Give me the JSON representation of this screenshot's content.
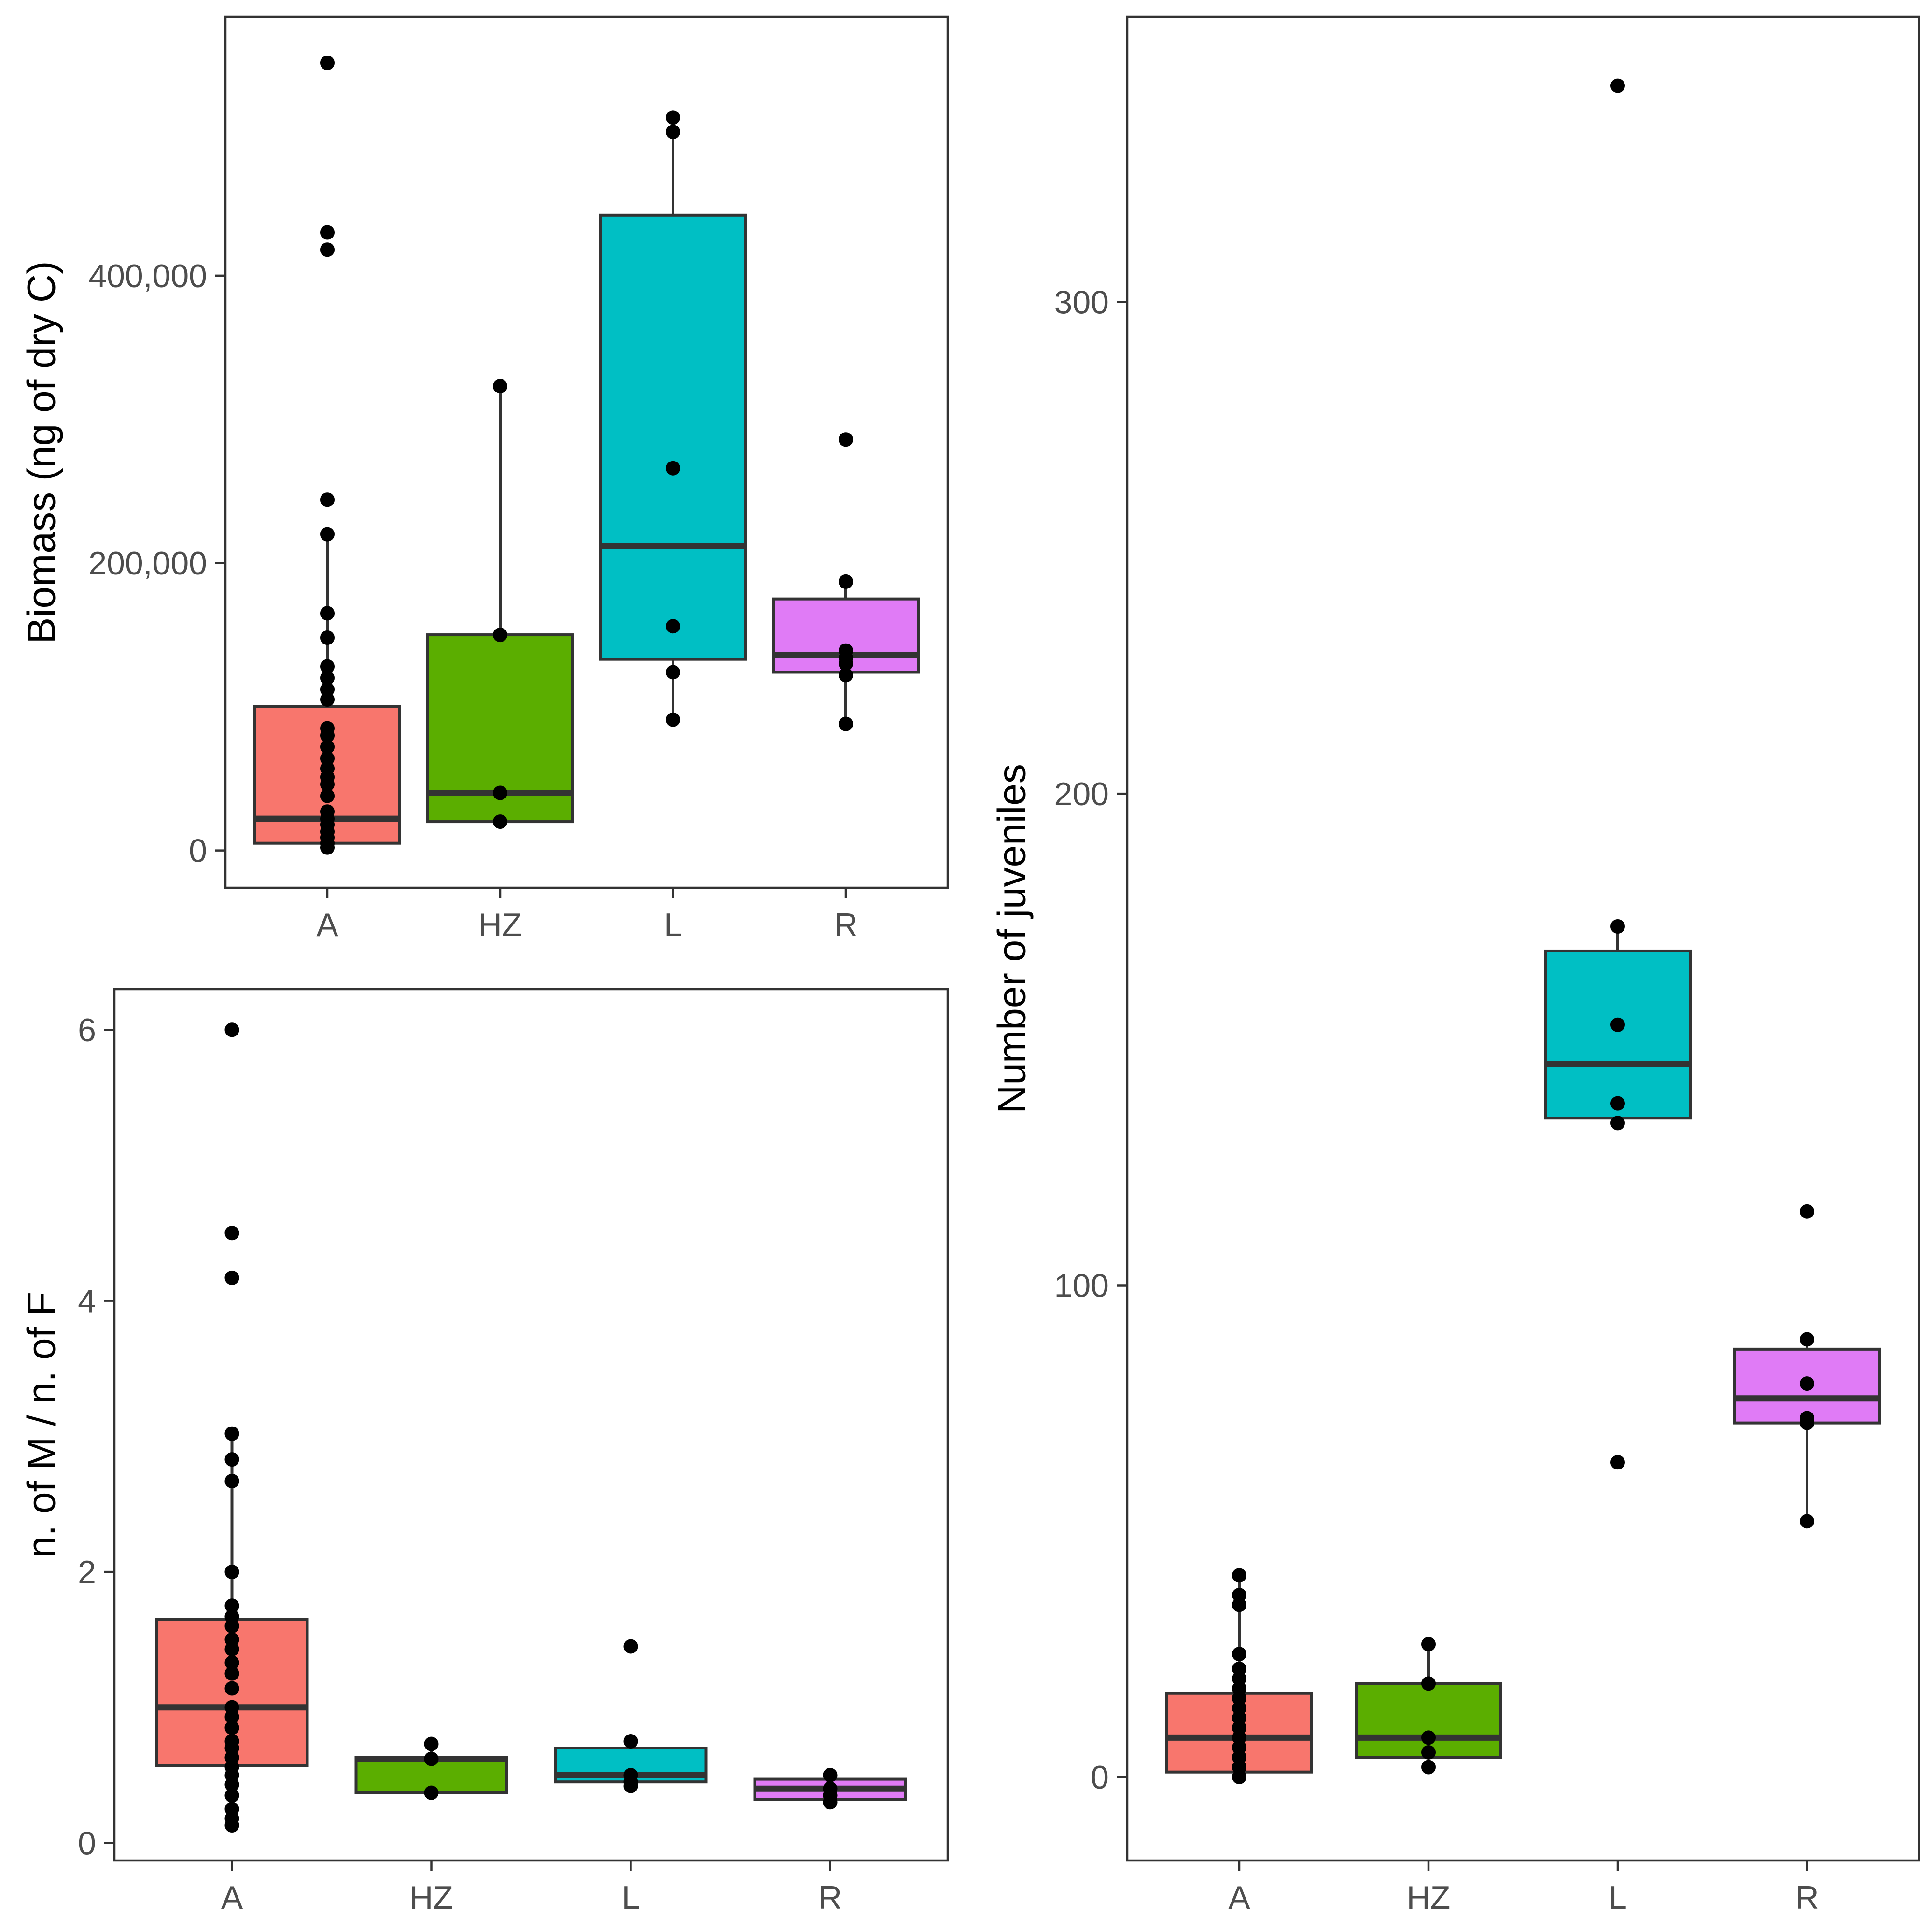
{
  "chart_data": [
    {
      "id": "biomass",
      "type": "box",
      "ylabel": "Biomass (ng of dry C)",
      "categories": [
        "A",
        "HZ",
        "L",
        "R"
      ],
      "colors": [
        "#F8766D",
        "#5BAE00",
        "#00BFC4",
        "#E07BF6"
      ],
      "ylim": [
        -26000,
        580000
      ],
      "yticks": [
        0,
        200000,
        400000
      ],
      "ytick_labels": [
        "0",
        "200,000",
        "400,000"
      ],
      "boxes": [
        {
          "q1": 5000,
          "median": 22000,
          "q3": 100000,
          "lower": 0,
          "upper": 220000
        },
        {
          "q1": 20000,
          "median": 40000,
          "q3": 150000,
          "lower": 20000,
          "upper": 323000
        },
        {
          "q1": 133000,
          "median": 212000,
          "q3": 442000,
          "lower": 91000,
          "upper": 510000
        },
        {
          "q1": 124000,
          "median": 136000,
          "q3": 175000,
          "lower": 88000,
          "upper": 187000
        }
      ],
      "points": [
        [
          548000,
          430000,
          418000,
          244000,
          220000,
          165000,
          148000,
          128000,
          120000,
          112000,
          105000,
          85000,
          80000,
          72000,
          64000,
          57000,
          51000,
          46000,
          38000,
          27000,
          22000,
          18000,
          13000,
          9000,
          5000,
          2000
        ],
        [
          323000,
          150000,
          40000,
          20000
        ],
        [
          510000,
          500000,
          266000,
          156000,
          124000,
          91000
        ],
        [
          286000,
          187000,
          139000,
          134000,
          130000,
          122000,
          88000
        ]
      ]
    },
    {
      "id": "sexratio",
      "type": "box",
      "ylabel": "n. of M / n. of F",
      "categories": [
        "A",
        "HZ",
        "L",
        "R"
      ],
      "colors": [
        "#F8766D",
        "#5BAE00",
        "#00BFC4",
        "#E07BF6"
      ],
      "ylim": [
        -0.13,
        6.3
      ],
      "yticks": [
        0,
        2,
        4,
        6
      ],
      "ytick_labels": [
        "0",
        "2",
        "4",
        "6"
      ],
      "boxes": [
        {
          "q1": 0.57,
          "median": 1.0,
          "q3": 1.65,
          "lower": 0.13,
          "upper": 3.0
        },
        {
          "q1": 0.37,
          "median": 0.62,
          "q3": 0.63,
          "lower": 0.37,
          "upper": 0.73
        },
        {
          "q1": 0.45,
          "median": 0.5,
          "q3": 0.7,
          "lower": 0.42,
          "upper": 0.75
        },
        {
          "q1": 0.32,
          "median": 0.4,
          "q3": 0.47,
          "lower": 0.3,
          "upper": 0.5
        }
      ],
      "points": [
        [
          6.0,
          4.5,
          4.17,
          3.02,
          2.83,
          2.67,
          2.0,
          1.75,
          1.67,
          1.6,
          1.5,
          1.43,
          1.33,
          1.25,
          1.14,
          1.0,
          0.93,
          0.85,
          0.75,
          0.7,
          0.63,
          0.56,
          0.5,
          0.43,
          0.35,
          0.25,
          0.18,
          0.13
        ],
        [
          0.73,
          0.62,
          0.37
        ],
        [
          1.45,
          0.75,
          0.5,
          0.45,
          0.42
        ],
        [
          0.5,
          0.4,
          0.35,
          0.3
        ]
      ]
    },
    {
      "id": "juveniles",
      "type": "box",
      "ylabel": "Number of juveniles",
      "categories": [
        "A",
        "HZ",
        "L",
        "R"
      ],
      "colors": [
        "#F8766D",
        "#5BAE00",
        "#00BFC4",
        "#E07BF6"
      ],
      "ylim": [
        -17,
        358
      ],
      "yticks": [
        0,
        100,
        200,
        300
      ],
      "ytick_labels": [
        "0",
        "100",
        "200",
        "300"
      ],
      "boxes": [
        {
          "q1": 1,
          "median": 8,
          "q3": 17,
          "lower": 0,
          "upper": 41
        },
        {
          "q1": 4,
          "median": 8,
          "q3": 19,
          "lower": 4,
          "upper": 27
        },
        {
          "q1": 134,
          "median": 145,
          "q3": 168,
          "lower": 134,
          "upper": 173
        },
        {
          "q1": 72,
          "median": 77,
          "q3": 87,
          "lower": 52,
          "upper": 89
        }
      ],
      "points": [
        [
          41,
          37,
          35,
          25,
          22,
          20,
          18,
          16,
          14,
          12,
          10,
          8,
          6,
          4,
          2,
          0
        ],
        [
          27,
          19,
          8,
          5,
          2
        ],
        [
          344,
          173,
          153,
          137,
          133,
          64
        ],
        [
          115,
          89,
          80,
          73,
          72,
          52
        ]
      ]
    }
  ]
}
